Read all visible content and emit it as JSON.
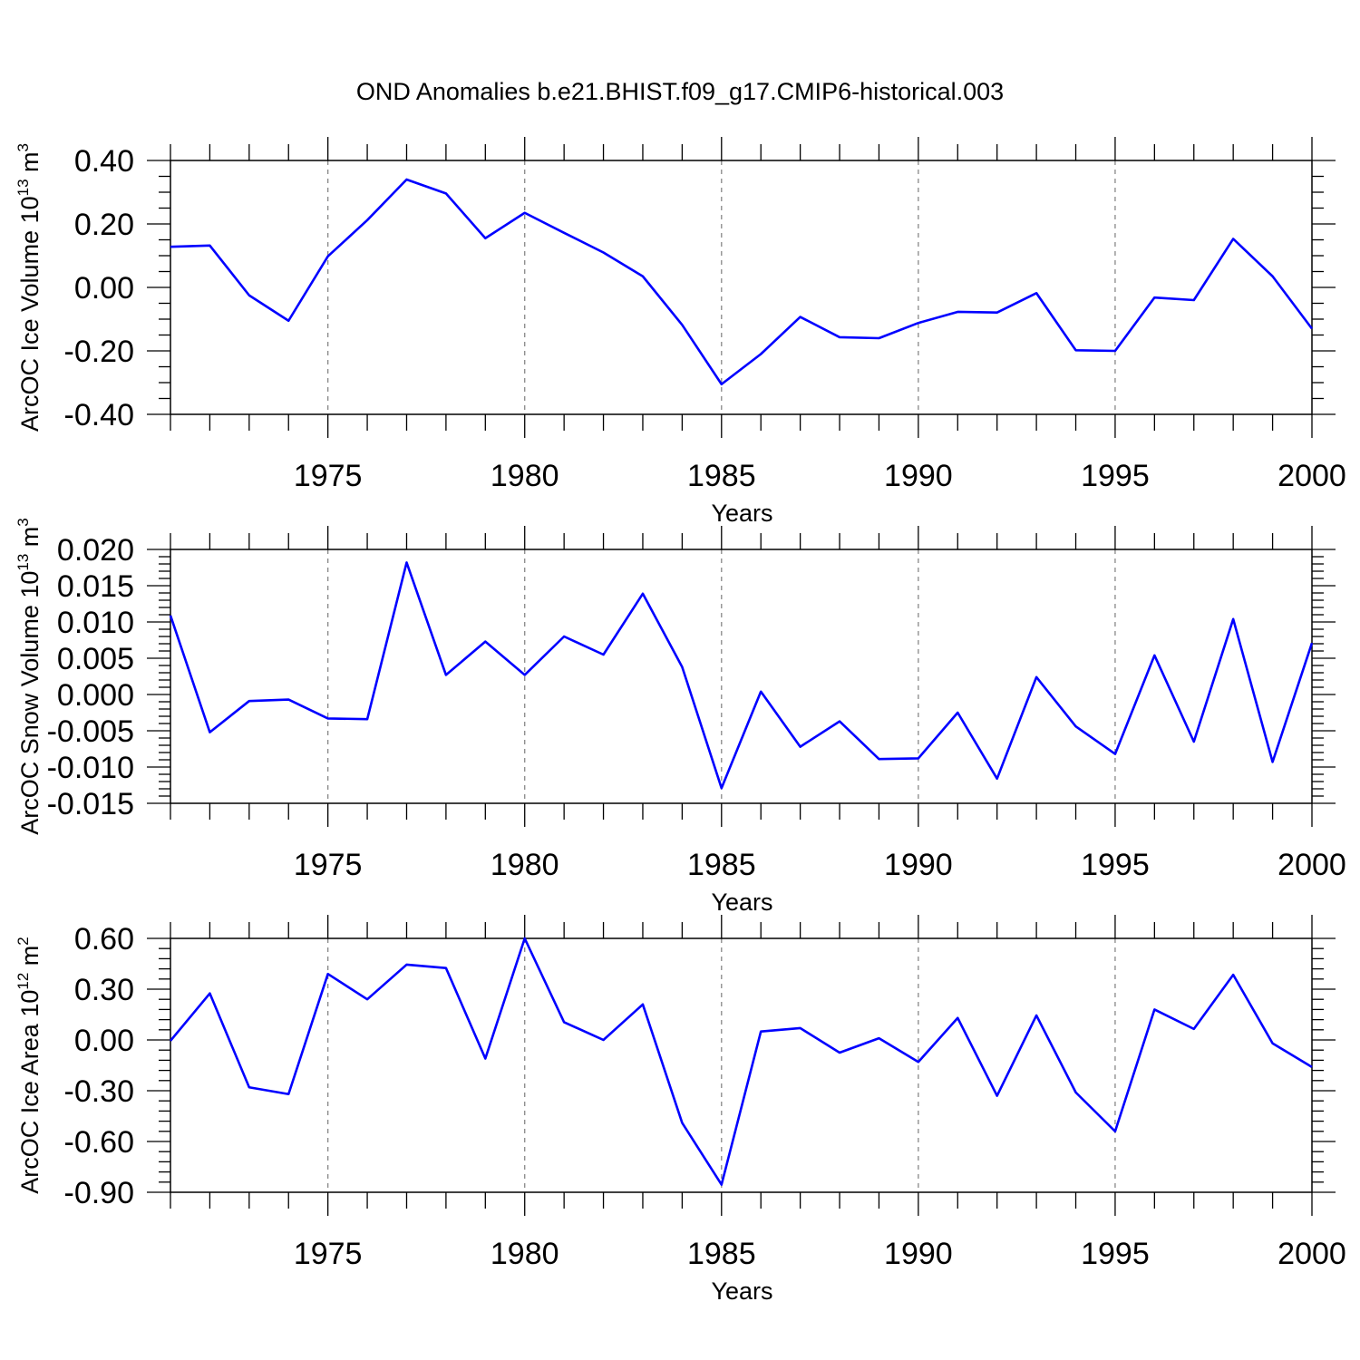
{
  "title": "OND Anomalies b.e21.BHIST.f09_g17.CMIP6-historical.003",
  "colors": {
    "series": "#0000ff",
    "grid": "#888888",
    "axis": "#000000"
  },
  "chart_data": [
    {
      "type": "line",
      "xlabel": "Years",
      "ylabel": {
        "text": "ArcOC Ice Volume 10",
        "exp": "13",
        "unit_text": " m",
        "unit_exp": "3"
      },
      "xlim": [
        1971,
        2000
      ],
      "ylim": [
        -0.4,
        0.4
      ],
      "xticks": [
        "1975",
        "1980",
        "1985",
        "1990",
        "1995",
        "2000"
      ],
      "yticks": [
        "0.40",
        "0.20",
        "0.00",
        "-0.20",
        "-0.40"
      ],
      "grid": "dashed vertical lines at labelled years",
      "x": [
        1971,
        1972,
        1973,
        1974,
        1975,
        1976,
        1977,
        1978,
        1979,
        1980,
        1981,
        1982,
        1983,
        1984,
        1985,
        1986,
        1987,
        1988,
        1989,
        1990,
        1991,
        1992,
        1993,
        1994,
        1995,
        1996,
        1997,
        1998,
        1999,
        2000
      ],
      "series": [
        {
          "values": [
            0.128,
            0.132,
            -0.025,
            -0.105,
            0.098,
            0.212,
            0.34,
            0.296,
            0.155,
            0.235,
            0.172,
            0.11,
            0.035,
            -0.118,
            -0.305,
            -0.21,
            -0.093,
            -0.157,
            -0.16,
            -0.112,
            -0.077,
            -0.079,
            -0.018,
            -0.198,
            -0.2,
            -0.032,
            -0.04,
            0.153,
            0.035,
            -0.13
          ]
        }
      ]
    },
    {
      "type": "line",
      "xlabel": "Years",
      "ylabel": {
        "text": "ArcOC Snow Volume 10",
        "exp": "13",
        "unit_text": " m",
        "unit_exp": "3"
      },
      "xlim": [
        1971,
        2000
      ],
      "ylim": [
        -0.015,
        0.02
      ],
      "xticks": [
        "1975",
        "1980",
        "1985",
        "1990",
        "1995",
        "2000"
      ],
      "yticks": [
        "0.020",
        "0.015",
        "0.010",
        "0.005",
        "0.000",
        "-0.005",
        "-0.010",
        "-0.015"
      ],
      "grid": "dashed vertical lines at labelled years",
      "x": [
        1971,
        1972,
        1973,
        1974,
        1975,
        1976,
        1977,
        1978,
        1979,
        1980,
        1981,
        1982,
        1983,
        1984,
        1985,
        1986,
        1987,
        1988,
        1989,
        1990,
        1991,
        1992,
        1993,
        1994,
        1995,
        1996,
        1997,
        1998,
        1999,
        2000
      ],
      "series": [
        {
          "values": [
            0.0109,
            -0.0052,
            -0.0009,
            -0.0007,
            -0.0033,
            -0.0034,
            0.0182,
            0.0027,
            0.0073,
            0.0027,
            0.008,
            0.0055,
            0.0139,
            0.0038,
            -0.0129,
            0.0004,
            -0.0072,
            -0.0037,
            -0.0089,
            -0.0088,
            -0.0025,
            -0.0116,
            0.0024,
            -0.0044,
            -0.0082,
            0.0054,
            -0.0065,
            0.0104,
            -0.0093,
            0.0071
          ]
        }
      ]
    },
    {
      "type": "line",
      "xlabel": "Years",
      "ylabel": {
        "text": "ArcOC Ice Area 10",
        "exp": "12",
        "unit_text": " m",
        "unit_exp": "2"
      },
      "xlim": [
        1971,
        2000
      ],
      "ylim": [
        -0.9,
        0.6
      ],
      "xticks": [
        "1975",
        "1980",
        "1985",
        "1990",
        "1995",
        "2000"
      ],
      "yticks": [
        "0.60",
        "0.30",
        "0.00",
        "-0.30",
        "-0.60",
        "-0.90"
      ],
      "grid": "dashed vertical lines at labelled years",
      "x": [
        1971,
        1972,
        1973,
        1974,
        1975,
        1976,
        1977,
        1978,
        1979,
        1980,
        1981,
        1982,
        1983,
        1984,
        1985,
        1986,
        1987,
        1988,
        1989,
        1990,
        1991,
        1992,
        1993,
        1994,
        1995,
        1996,
        1997,
        1998,
        1999,
        2000
      ],
      "series": [
        {
          "values": [
            -0.005,
            0.275,
            -0.28,
            -0.32,
            0.39,
            0.24,
            0.445,
            0.425,
            -0.11,
            0.6,
            0.105,
            0.0,
            0.21,
            -0.49,
            -0.855,
            0.05,
            0.07,
            -0.075,
            0.01,
            -0.13,
            0.13,
            -0.33,
            0.145,
            -0.31,
            -0.54,
            0.18,
            0.065,
            0.385,
            -0.02,
            -0.16
          ]
        }
      ]
    }
  ]
}
